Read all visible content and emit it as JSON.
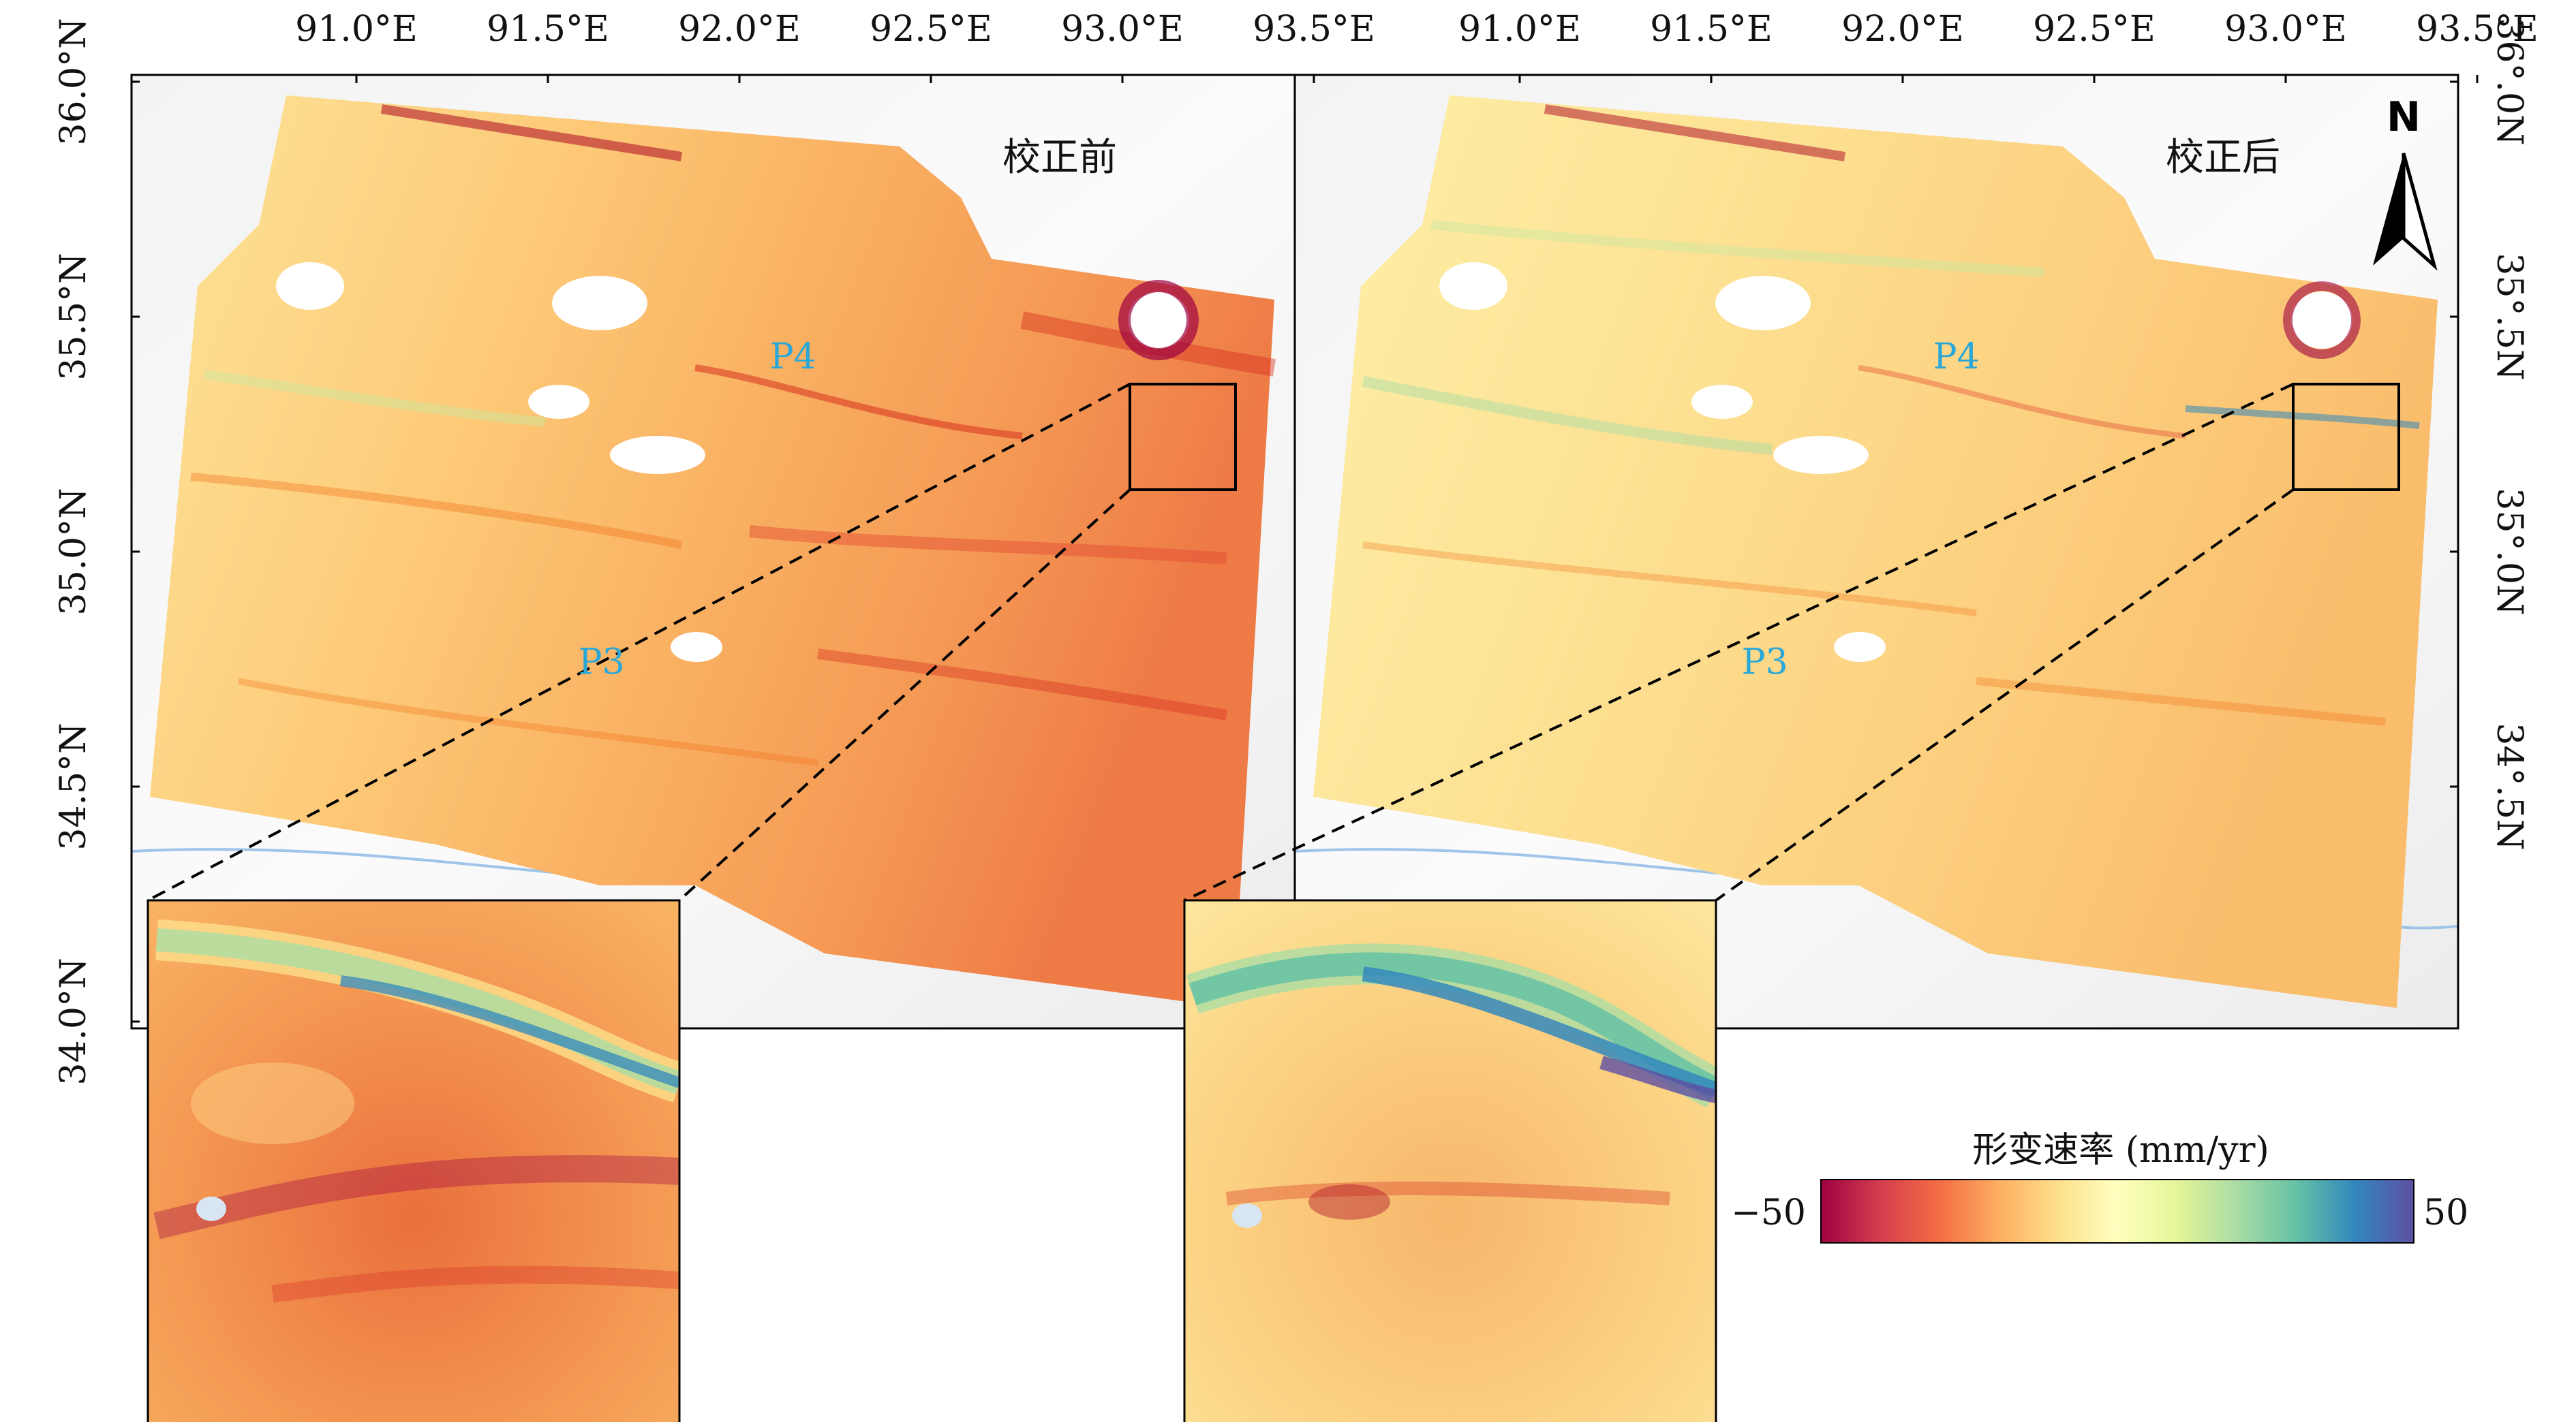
{
  "panels": [
    {
      "id": "before",
      "title": "校正前"
    },
    {
      "id": "after",
      "title": "校正后"
    }
  ],
  "points": [
    {
      "label": "P4",
      "lon": 92.14,
      "lat": 35.39
    },
    {
      "label": "P3",
      "lon": 91.64,
      "lat": 34.74
    }
  ],
  "axes": {
    "lon_ticks": [
      "91.0°E",
      "91.5°E",
      "92.0°E",
      "92.5°E",
      "93.0°E",
      "93.5°E"
    ],
    "lon_values": [
      91.0,
      91.5,
      92.0,
      92.5,
      93.0,
      93.5
    ],
    "lat_ticks_left": [
      "36.0°N",
      "35.5°N",
      "35.0°N",
      "34.5°N",
      "34.0°N"
    ],
    "lat_ticks_right": [
      "36°.0N",
      "35°.5N",
      "35°.0N",
      "34°.5N"
    ],
    "lat_values": [
      36.0,
      35.5,
      35.0,
      34.5,
      34.0
    ]
  },
  "north_arrow": {
    "label": "N"
  },
  "colorbar": {
    "title": "形变速率 (mm/yr)",
    "min_label": "−50",
    "max_label": "50",
    "min": -50,
    "max": 50,
    "colors": [
      "#9e0142",
      "#d53e4f",
      "#f46d43",
      "#fdae61",
      "#fee08b",
      "#ffffbf",
      "#e6f598",
      "#abdda4",
      "#66c2a5",
      "#3288bd",
      "#5e4fa2"
    ]
  },
  "colors": {
    "frame": "#000000",
    "point_label": "#29a8d8",
    "river": "#9ec5e8",
    "lake": "#ffffff"
  }
}
